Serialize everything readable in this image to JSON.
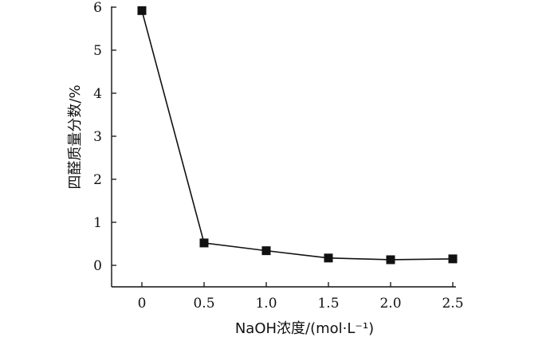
{
  "chart_data": {
    "type": "line",
    "xlabel": "NaOH浓度/(mol·L⁻¹)",
    "ylabel": "四醛质量分数/%",
    "xlim": [
      -0.25,
      2.5
    ],
    "ylim": [
      -0.5,
      6
    ],
    "x_ticks": [
      "0",
      "0.5",
      "1.0",
      "1.5",
      "2.0",
      "2.5"
    ],
    "x_tick_values": [
      0,
      0.5,
      1.0,
      1.5,
      2.0,
      2.5
    ],
    "y_ticks": [
      "0",
      "1",
      "2",
      "3",
      "4",
      "5",
      "6"
    ],
    "y_tick_values": [
      0,
      1,
      2,
      3,
      4,
      5,
      6
    ],
    "series": [
      {
        "x": [
          0,
          0.5,
          1.0,
          1.5,
          2.0,
          2.5
        ],
        "values": [
          5.92,
          0.52,
          0.34,
          0.17,
          0.13,
          0.15
        ],
        "marker": "square",
        "color": "#111111"
      }
    ],
    "grid": false,
    "legend": "none"
  }
}
